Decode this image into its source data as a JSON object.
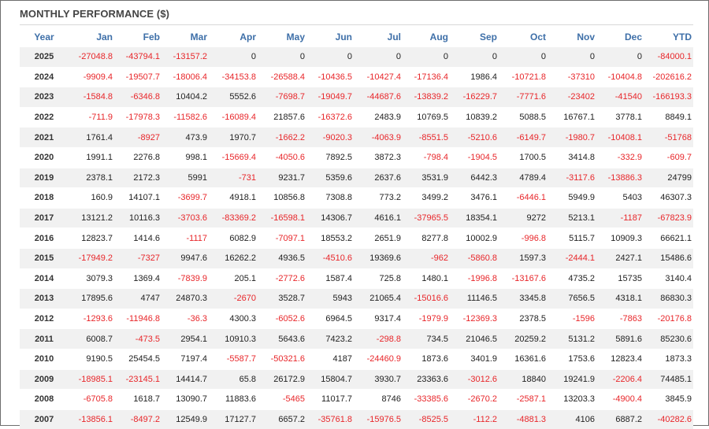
{
  "title": "MONTHLY PERFORMANCE ($)",
  "colors": {
    "header_text": "#3e6fa8",
    "negative": "#e8262a",
    "stripe": "#f1f1f1"
  },
  "columns": [
    "Year",
    "Jan",
    "Feb",
    "Mar",
    "Apr",
    "May",
    "Jun",
    "Jul",
    "Aug",
    "Sep",
    "Oct",
    "Nov",
    "Dec",
    "YTD"
  ],
  "rows": [
    [
      "2025",
      "-27048.8",
      "-43794.1",
      "-13157.2",
      "0",
      "0",
      "0",
      "0",
      "0",
      "0",
      "0",
      "0",
      "0",
      "-84000.1"
    ],
    [
      "2024",
      "-9909.4",
      "-19507.7",
      "-18006.4",
      "-34153.8",
      "-26588.4",
      "-10436.5",
      "-10427.4",
      "-17136.4",
      "1986.4",
      "-10721.8",
      "-37310",
      "-10404.8",
      "-202616.2"
    ],
    [
      "2023",
      "-1584.8",
      "-6346.8",
      "10404.2",
      "5552.6",
      "-7698.7",
      "-19049.7",
      "-44687.6",
      "-13839.2",
      "-16229.7",
      "-7771.6",
      "-23402",
      "-41540",
      "-166193.3"
    ],
    [
      "2022",
      "-711.9",
      "-17978.3",
      "-11582.6",
      "-16089.4",
      "21857.6",
      "-16372.6",
      "2483.9",
      "10769.5",
      "10839.2",
      "5088.5",
      "16767.1",
      "3778.1",
      "8849.1"
    ],
    [
      "2021",
      "1761.4",
      "-8927",
      "473.9",
      "1970.7",
      "-1662.2",
      "-9020.3",
      "-4063.9",
      "-8551.5",
      "-5210.6",
      "-6149.7",
      "-1980.7",
      "-10408.1",
      "-51768"
    ],
    [
      "2020",
      "1991.1",
      "2276.8",
      "998.1",
      "-15669.4",
      "-4050.6",
      "7892.5",
      "3872.3",
      "-798.4",
      "-1904.5",
      "1700.5",
      "3414.8",
      "-332.9",
      "-609.7"
    ],
    [
      "2019",
      "2378.1",
      "2172.3",
      "5991",
      "-731",
      "9231.7",
      "5359.6",
      "2637.6",
      "3531.9",
      "6442.3",
      "4789.4",
      "-3117.6",
      "-13886.3",
      "24799"
    ],
    [
      "2018",
      "160.9",
      "14107.1",
      "-3699.7",
      "4918.1",
      "10856.8",
      "7308.8",
      "773.2",
      "3499.2",
      "3476.1",
      "-6446.1",
      "5949.9",
      "5403",
      "46307.3"
    ],
    [
      "2017",
      "13121.2",
      "10116.3",
      "-3703.6",
      "-83369.2",
      "-16598.1",
      "14306.7",
      "4616.1",
      "-37965.5",
      "18354.1",
      "9272",
      "5213.1",
      "-1187",
      "-67823.9"
    ],
    [
      "2016",
      "12823.7",
      "1414.6",
      "-1117",
      "6082.9",
      "-7097.1",
      "18553.2",
      "2651.9",
      "8277.8",
      "10002.9",
      "-996.8",
      "5115.7",
      "10909.3",
      "66621.1"
    ],
    [
      "2015",
      "-17949.2",
      "-7327",
      "9947.6",
      "16262.2",
      "4936.5",
      "-4510.6",
      "19369.6",
      "-962",
      "-5860.8",
      "1597.3",
      "-2444.1",
      "2427.1",
      "15486.6"
    ],
    [
      "2014",
      "3079.3",
      "1369.4",
      "-7839.9",
      "205.1",
      "-2772.6",
      "1587.4",
      "725.8",
      "1480.1",
      "-1996.8",
      "-13167.6",
      "4735.2",
      "15735",
      "3140.4"
    ],
    [
      "2013",
      "17895.6",
      "4747",
      "24870.3",
      "-2670",
      "3528.7",
      "5943",
      "21065.4",
      "-15016.6",
      "11146.5",
      "3345.8",
      "7656.5",
      "4318.1",
      "86830.3"
    ],
    [
      "2012",
      "-1293.6",
      "-11946.8",
      "-36.3",
      "4300.3",
      "-6052.6",
      "6964.5",
      "9317.4",
      "-1979.9",
      "-12369.3",
      "2378.5",
      "-1596",
      "-7863",
      "-20176.8"
    ],
    [
      "2011",
      "6008.7",
      "-473.5",
      "2954.1",
      "10910.3",
      "5643.6",
      "7423.2",
      "-298.8",
      "734.5",
      "21046.5",
      "20259.2",
      "5131.2",
      "5891.6",
      "85230.6"
    ],
    [
      "2010",
      "9190.5",
      "25454.5",
      "7197.4",
      "-5587.7",
      "-50321.6",
      "4187",
      "-24460.9",
      "1873.6",
      "3401.9",
      "16361.6",
      "1753.6",
      "12823.4",
      "1873.3"
    ],
    [
      "2009",
      "-18985.1",
      "-23145.1",
      "14414.7",
      "65.8",
      "26172.9",
      "15804.7",
      "3930.7",
      "23363.6",
      "-3012.6",
      "18840",
      "19241.9",
      "-2206.4",
      "74485.1"
    ],
    [
      "2008",
      "-6705.8",
      "1618.7",
      "13090.7",
      "11883.6",
      "-5465",
      "11017.7",
      "8746",
      "-33385.6",
      "-2670.2",
      "-2587.1",
      "13203.3",
      "-4900.4",
      "3845.9"
    ],
    [
      "2007",
      "-13856.1",
      "-8497.2",
      "12549.9",
      "17127.7",
      "6657.2",
      "-35761.8",
      "-15976.5",
      "-8525.5",
      "-112.2",
      "-4881.3",
      "4106",
      "6887.2",
      "-40282.6"
    ]
  ]
}
